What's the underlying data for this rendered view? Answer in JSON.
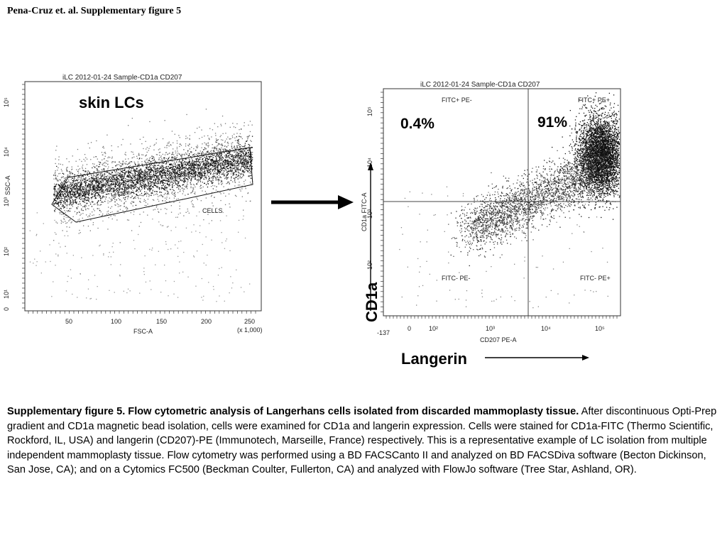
{
  "header": {
    "title": "Pena-Cruz et. al. Supplementary figure 5"
  },
  "left_plot": {
    "sample_title": "iLC 2012-01-24 Sample-CD1a CD207",
    "population_label": "skin LCs",
    "gate_label": "CELLS",
    "x_axis_label": "FSC-A",
    "y_axis_label": "SSC-A",
    "x_scale_note": "(x 1,000)",
    "x_ticks": [
      "50",
      "100",
      "150",
      "200",
      "250"
    ],
    "y_ticks": [
      "10⁵",
      "10⁴",
      "10³",
      "10²",
      "10¹",
      "0"
    ]
  },
  "right_plot": {
    "sample_title": "iLC 2012-01-24 Sample-CD1a CD207",
    "x_axis_label": "CD207 PE-A",
    "y_axis_label": "CD1a FITC-A",
    "x_ticks": [
      "-137",
      "0",
      "10²",
      "10³",
      "10⁴",
      "10⁵"
    ],
    "y_ticks": [
      "10⁵",
      "10⁴",
      "10³",
      "10²"
    ],
    "quadrants": {
      "upper_left": "FITC+ PE-",
      "upper_right": "FITC+ PE+",
      "lower_left": "FITC- PE-",
      "lower_right": "FITC- PE+"
    },
    "upper_left_pct": "0.4%",
    "upper_right_pct": "91%",
    "y_marker_label": "CD1a",
    "x_marker_label": "Langerin"
  },
  "caption": {
    "bold": "Supplementary figure 5.  Flow cytometric analysis of Langerhans cells isolated from discarded mammoplasty tissue.",
    "text": "  After discontinuous Opti-Prep gradient and CD1a magnetic bead isolation, cells were examined for CD1a and langerin expression.  Cells were stained for CD1a-FITC (Thermo Scientific, Rockford, IL, USA) and langerin (CD207)-PE (Immunotech, Marseille, France) respectively.  This is a representative example of LC isolation from multiple independent mammoplasty tissue. Flow cytometry was performed using a BD FACSCanto II and analyzed on BD FACSDiva software (Becton Dickinson, San Jose, CA); and on a Cytomics FC500 (Beckman Coulter, Fullerton, CA) and analyzed with FlowJo software (Tree Star, Ashland, OR)."
  }
}
